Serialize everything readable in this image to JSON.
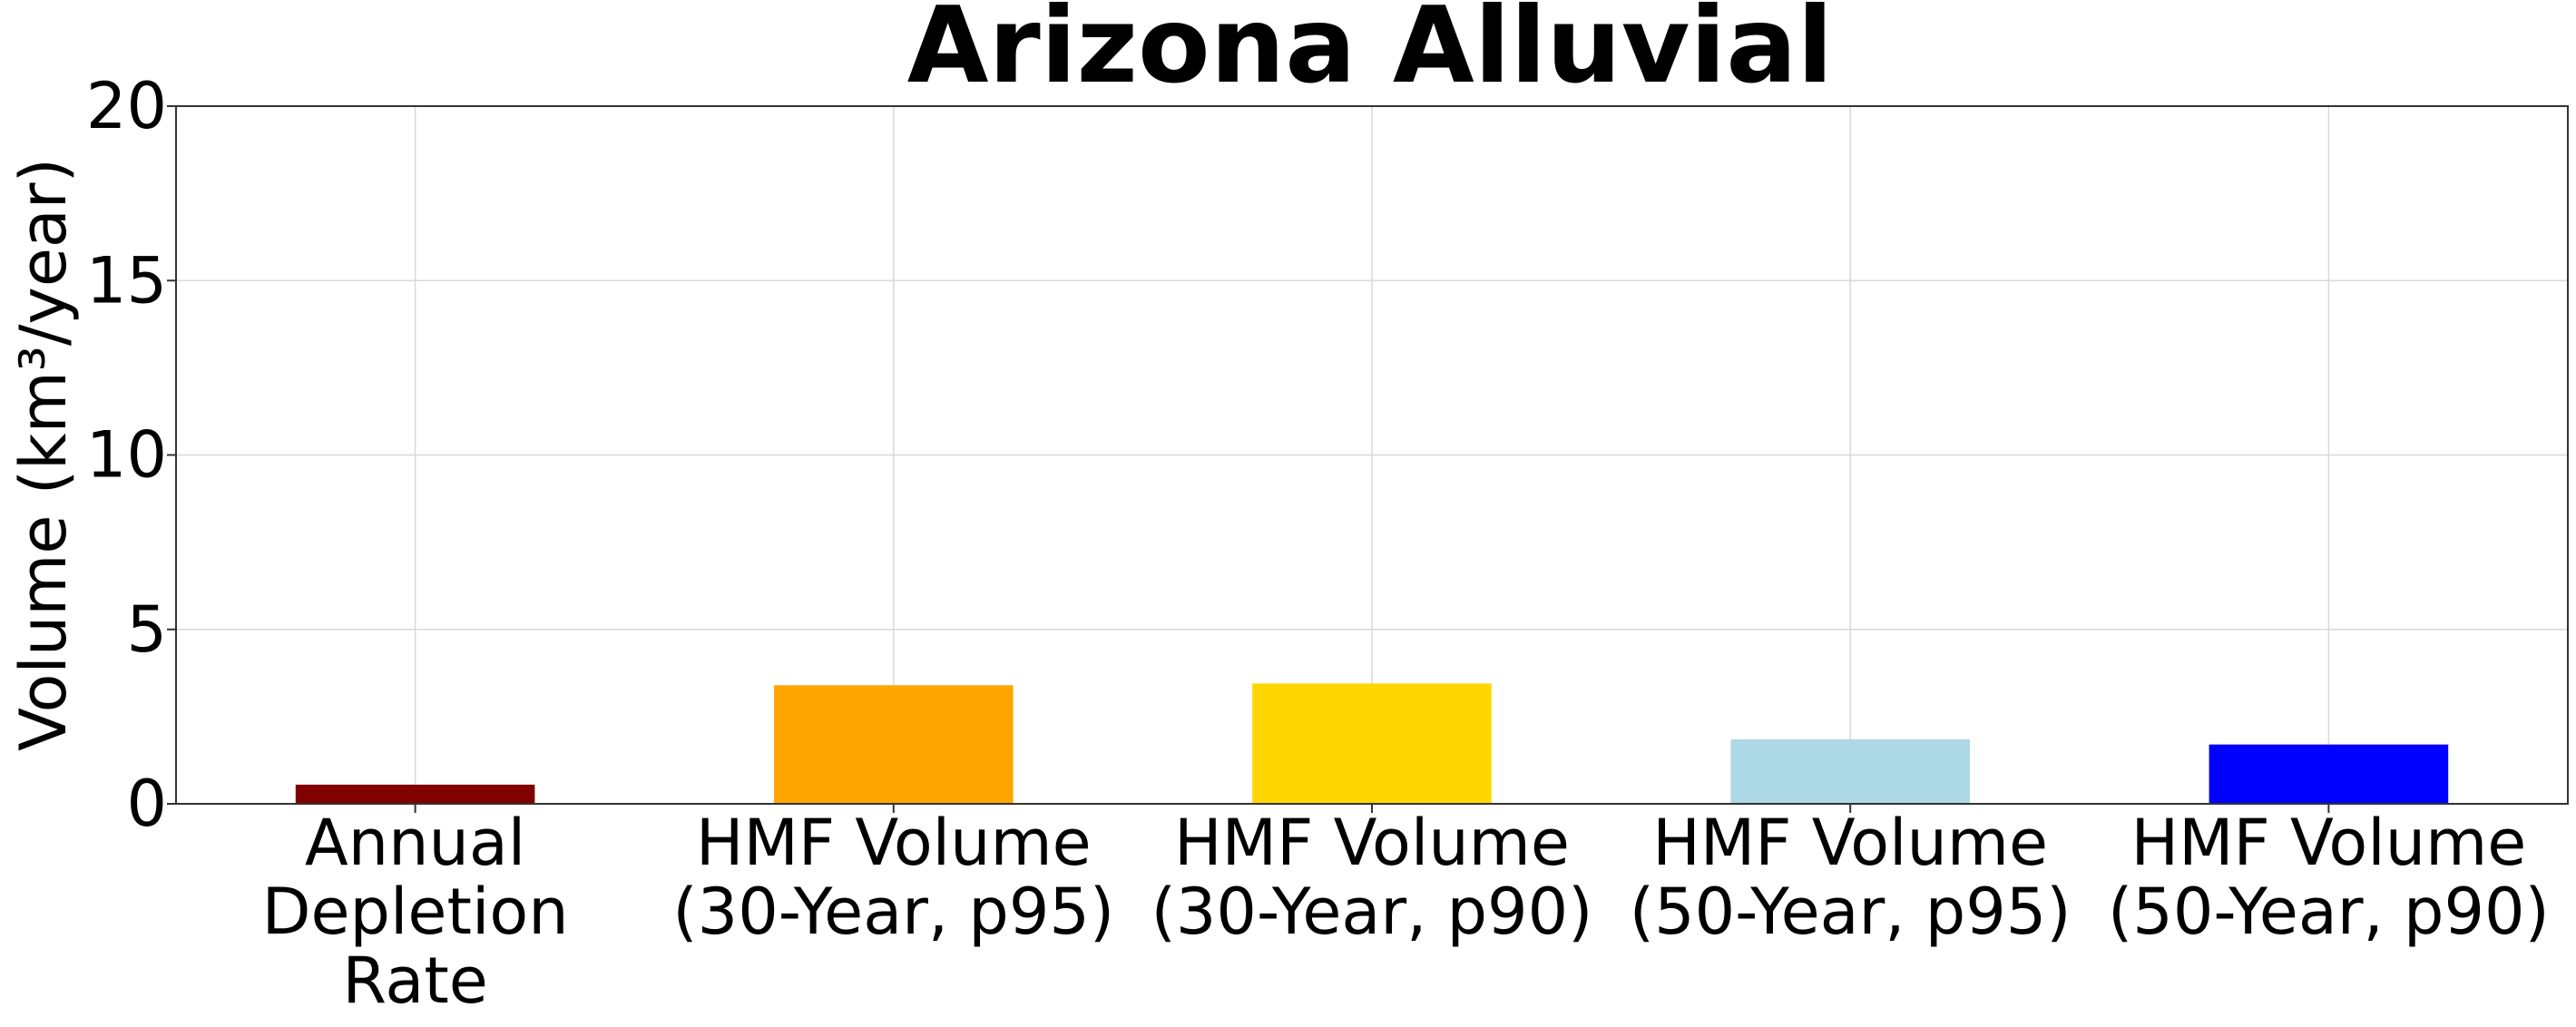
{
  "chart_data": {
    "type": "bar",
    "title": "Arizona Alluvial",
    "xlabel": "",
    "ylabel": "Volume (km³/year)",
    "categories": [
      [
        "Annual",
        "Depletion",
        "Rate"
      ],
      [
        "HMF Volume",
        "(30-Year, p95)"
      ],
      [
        "HMF Volume",
        "(30-Year, p90)"
      ],
      [
        "HMF Volume",
        "(50-Year, p95)"
      ],
      [
        "HMF Volume",
        "(50-Year, p90)"
      ]
    ],
    "values": [
      0.55,
      3.4,
      3.45,
      1.85,
      1.7
    ],
    "colors": [
      "#800000",
      "#FFA500",
      "#FFD700",
      "#ADD8E6",
      "#0000FF"
    ],
    "ylim": [
      0,
      20
    ],
    "yticks": [
      0,
      5,
      10,
      15,
      20
    ],
    "grid": true,
    "legend": "none"
  }
}
